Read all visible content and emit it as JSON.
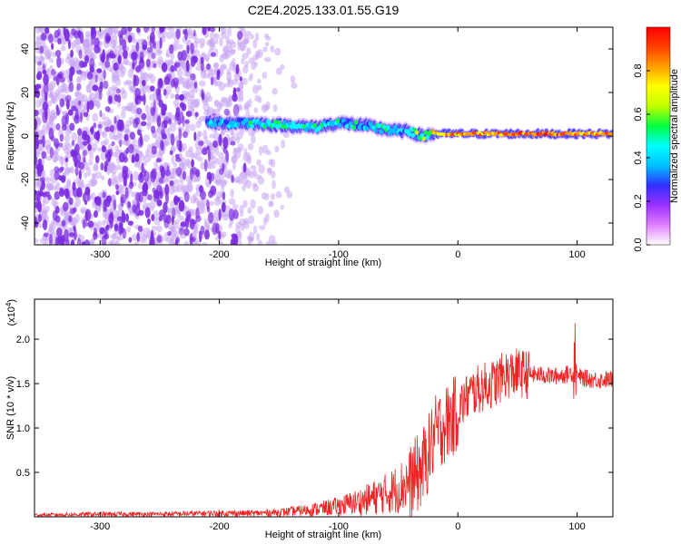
{
  "title": "C2E4.2025.133.01.55.G19",
  "colors": {
    "snr_line": "#ee2222",
    "frame": "#000000",
    "spectro_noise": "#7a2be0",
    "spectro_light": "#c9a6f3"
  },
  "chart_data": [
    {
      "type": "heatmap",
      "title": "",
      "xlabel": "Height of straight line (km)",
      "ylabel": "Frequency (Hz)",
      "xlim": [
        -355,
        130
      ],
      "ylim": [
        -50,
        50
      ],
      "xticks": [
        -300,
        -200,
        -100,
        0,
        100
      ],
      "yticks": [
        -40,
        -20,
        0,
        20,
        40
      ],
      "colorbar": {
        "label": "Normalized spectral amplitude",
        "range": [
          0,
          1
        ],
        "ticks": [
          "0.0",
          "0.2",
          "0.4",
          "0.6",
          "0.8"
        ],
        "tick_values": [
          0.0,
          0.2,
          0.4,
          0.6,
          0.8
        ],
        "colors": [
          "#ffffff",
          "#e080ff",
          "#9b30ff",
          "#3030ff",
          "#00c0ff",
          "#00ffff",
          "#00ff40",
          "#c0ff00",
          "#ffff00",
          "#ffa000",
          "#ff4000",
          "#ff0000"
        ]
      },
      "signal_track": {
        "x": [
          -210,
          -180,
          -150,
          -120,
          -100,
          -80,
          -60,
          -40,
          -30,
          -20,
          0,
          20,
          40,
          60,
          80,
          100,
          130
        ],
        "freq": [
          6,
          6,
          5,
          4,
          6,
          5,
          3,
          2,
          0,
          1,
          1,
          1,
          1,
          1,
          1,
          1,
          1
        ],
        "amplitude": [
          0.35,
          0.4,
          0.45,
          0.45,
          0.4,
          0.4,
          0.45,
          0.4,
          0.55,
          0.7,
          0.8,
          0.8,
          0.85,
          0.9,
          0.85,
          0.8,
          0.85
        ]
      },
      "noise_region": {
        "x_from": -355,
        "x_to": -175,
        "amplitude": 0.15
      }
    },
    {
      "type": "line",
      "title": "",
      "xlabel": "Height of straight line (km)",
      "ylabel": "SNR (10 * v/v)",
      "yscale_label": "(x10",
      "yscale_exp": "4",
      "yscale_suffix": ")",
      "xlim": [
        -355,
        130
      ],
      "ylim": [
        0,
        2.45
      ],
      "xticks": [
        -300,
        -200,
        -100,
        0,
        100
      ],
      "yticks": [
        0.5,
        1.0,
        1.5,
        2.0
      ],
      "ytick_labels": [
        "0.5",
        "1.0",
        "1.5",
        "2.0"
      ],
      "series": [
        {
          "x": [
            -355,
            -300,
            -250,
            -200,
            -170,
            -150,
            -130,
            -110,
            -100,
            -90,
            -80,
            -70,
            -60,
            -50,
            -40,
            -35,
            -30,
            -25,
            -20,
            -15,
            -10,
            -5,
            0,
            5,
            10,
            15,
            20,
            25,
            30,
            35,
            40,
            50,
            60,
            70,
            80,
            90,
            95,
            100,
            110,
            120,
            130
          ],
          "y": [
            0.02,
            0.03,
            0.03,
            0.04,
            0.04,
            0.05,
            0.07,
            0.1,
            0.12,
            0.15,
            0.18,
            0.22,
            0.26,
            0.32,
            0.4,
            0.46,
            0.55,
            0.7,
            0.9,
            1.0,
            1.05,
            1.1,
            1.2,
            1.3,
            1.38,
            1.42,
            1.45,
            1.48,
            1.5,
            1.55,
            1.6,
            1.62,
            1.6,
            1.6,
            1.58,
            1.6,
            1.62,
            1.58,
            1.55,
            1.54,
            1.55
          ]
        }
      ]
    }
  ]
}
